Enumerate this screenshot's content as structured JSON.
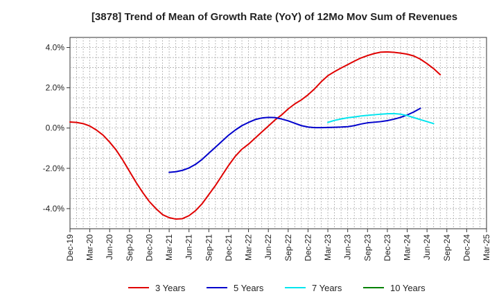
{
  "chart_data": {
    "type": "line",
    "title": "[3878]  Trend of Mean of Growth Rate (YoY) of 12Mo Mov Sum of Revenues",
    "xlabel": "",
    "ylabel": "",
    "ylim": [
      -5.0,
      4.5
    ],
    "y_ticks": [
      4.0,
      2.0,
      0.0,
      -2.0,
      -4.0
    ],
    "y_tick_labels": [
      "4.0%",
      "2.0%",
      "0.0%",
      "-2.0%",
      "-4.0%"
    ],
    "x_tick_labels": [
      "Dec-19",
      "Mar-20",
      "Jun-20",
      "Sep-20",
      "Dec-20",
      "Mar-21",
      "Jun-21",
      "Sep-21",
      "Dec-21",
      "Mar-22",
      "Jun-22",
      "Sep-22",
      "Dec-22",
      "Mar-23",
      "Jun-23",
      "Sep-23",
      "Dec-23",
      "Mar-24",
      "Jun-24",
      "Sep-24",
      "Dec-24",
      "Mar-25"
    ],
    "grid": true,
    "legend_position": "bottom",
    "series": [
      {
        "name": "3 Years",
        "color": "#e00000",
        "start_month_index": 0,
        "values": [
          0.3,
          0.28,
          0.22,
          0.1,
          -0.1,
          -0.35,
          -0.7,
          -1.1,
          -1.6,
          -2.15,
          -2.7,
          -3.2,
          -3.65,
          -4.0,
          -4.3,
          -4.45,
          -4.52,
          -4.5,
          -4.35,
          -4.1,
          -3.75,
          -3.3,
          -2.85,
          -2.35,
          -1.85,
          -1.4,
          -1.05,
          -0.8,
          -0.5,
          -0.2,
          0.1,
          0.4,
          0.65,
          0.95,
          1.2,
          1.4,
          1.65,
          1.95,
          2.3,
          2.6,
          2.8,
          2.98,
          3.15,
          3.32,
          3.48,
          3.6,
          3.7,
          3.77,
          3.78,
          3.76,
          3.72,
          3.67,
          3.58,
          3.42,
          3.2,
          2.95,
          2.65
        ]
      },
      {
        "name": "5 Years",
        "color": "#0000cc",
        "start_month_index": 15,
        "values": [
          -2.2,
          -2.17,
          -2.1,
          -1.98,
          -1.8,
          -1.55,
          -1.25,
          -0.95,
          -0.65,
          -0.35,
          -0.1,
          0.12,
          0.28,
          0.42,
          0.5,
          0.53,
          0.52,
          0.45,
          0.36,
          0.24,
          0.12,
          0.05,
          0.02,
          0.02,
          0.03,
          0.04,
          0.05,
          0.07,
          0.12,
          0.2,
          0.26,
          0.29,
          0.32,
          0.37,
          0.44,
          0.53,
          0.65,
          0.8,
          0.98
        ]
      },
      {
        "name": "7 Years",
        "color": "#00e5ee",
        "start_month_index": 39,
        "values": [
          0.28,
          0.38,
          0.45,
          0.51,
          0.55,
          0.6,
          0.63,
          0.66,
          0.69,
          0.71,
          0.72,
          0.69,
          0.62,
          0.52,
          0.42,
          0.32,
          0.22
        ]
      },
      {
        "name": "10 Years",
        "color": "#008000",
        "start_month_index": null,
        "values": []
      }
    ]
  }
}
